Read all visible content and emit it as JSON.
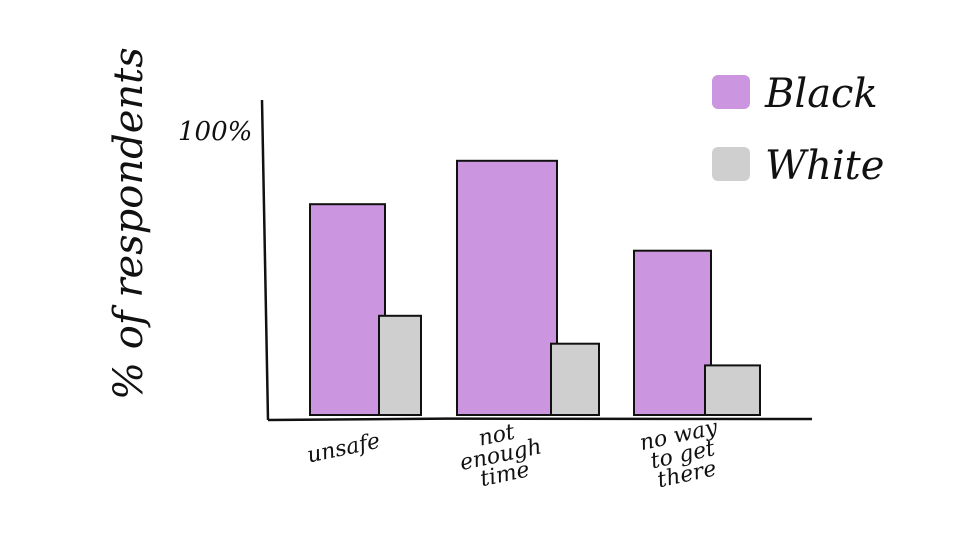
{
  "chart_data": {
    "type": "bar",
    "title": "",
    "xlabel": "",
    "ylabel": "% of respondents",
    "ymax_label": "100%",
    "ylim": [
      0,
      100
    ],
    "categories": [
      "unsafe",
      "not enough time",
      "no way to get there"
    ],
    "category_lines": [
      [
        "unsafe"
      ],
      [
        "not",
        "enough",
        "time"
      ],
      [
        "no way",
        "to get",
        "there"
      ]
    ],
    "series": [
      {
        "name": "Black",
        "color": "#cc95e0",
        "values": [
          68,
          82,
          53
        ]
      },
      {
        "name": "White",
        "color": "#cfcfcf",
        "values": [
          32,
          23,
          16
        ]
      }
    ],
    "legend_position": "top-right",
    "grid": false
  }
}
